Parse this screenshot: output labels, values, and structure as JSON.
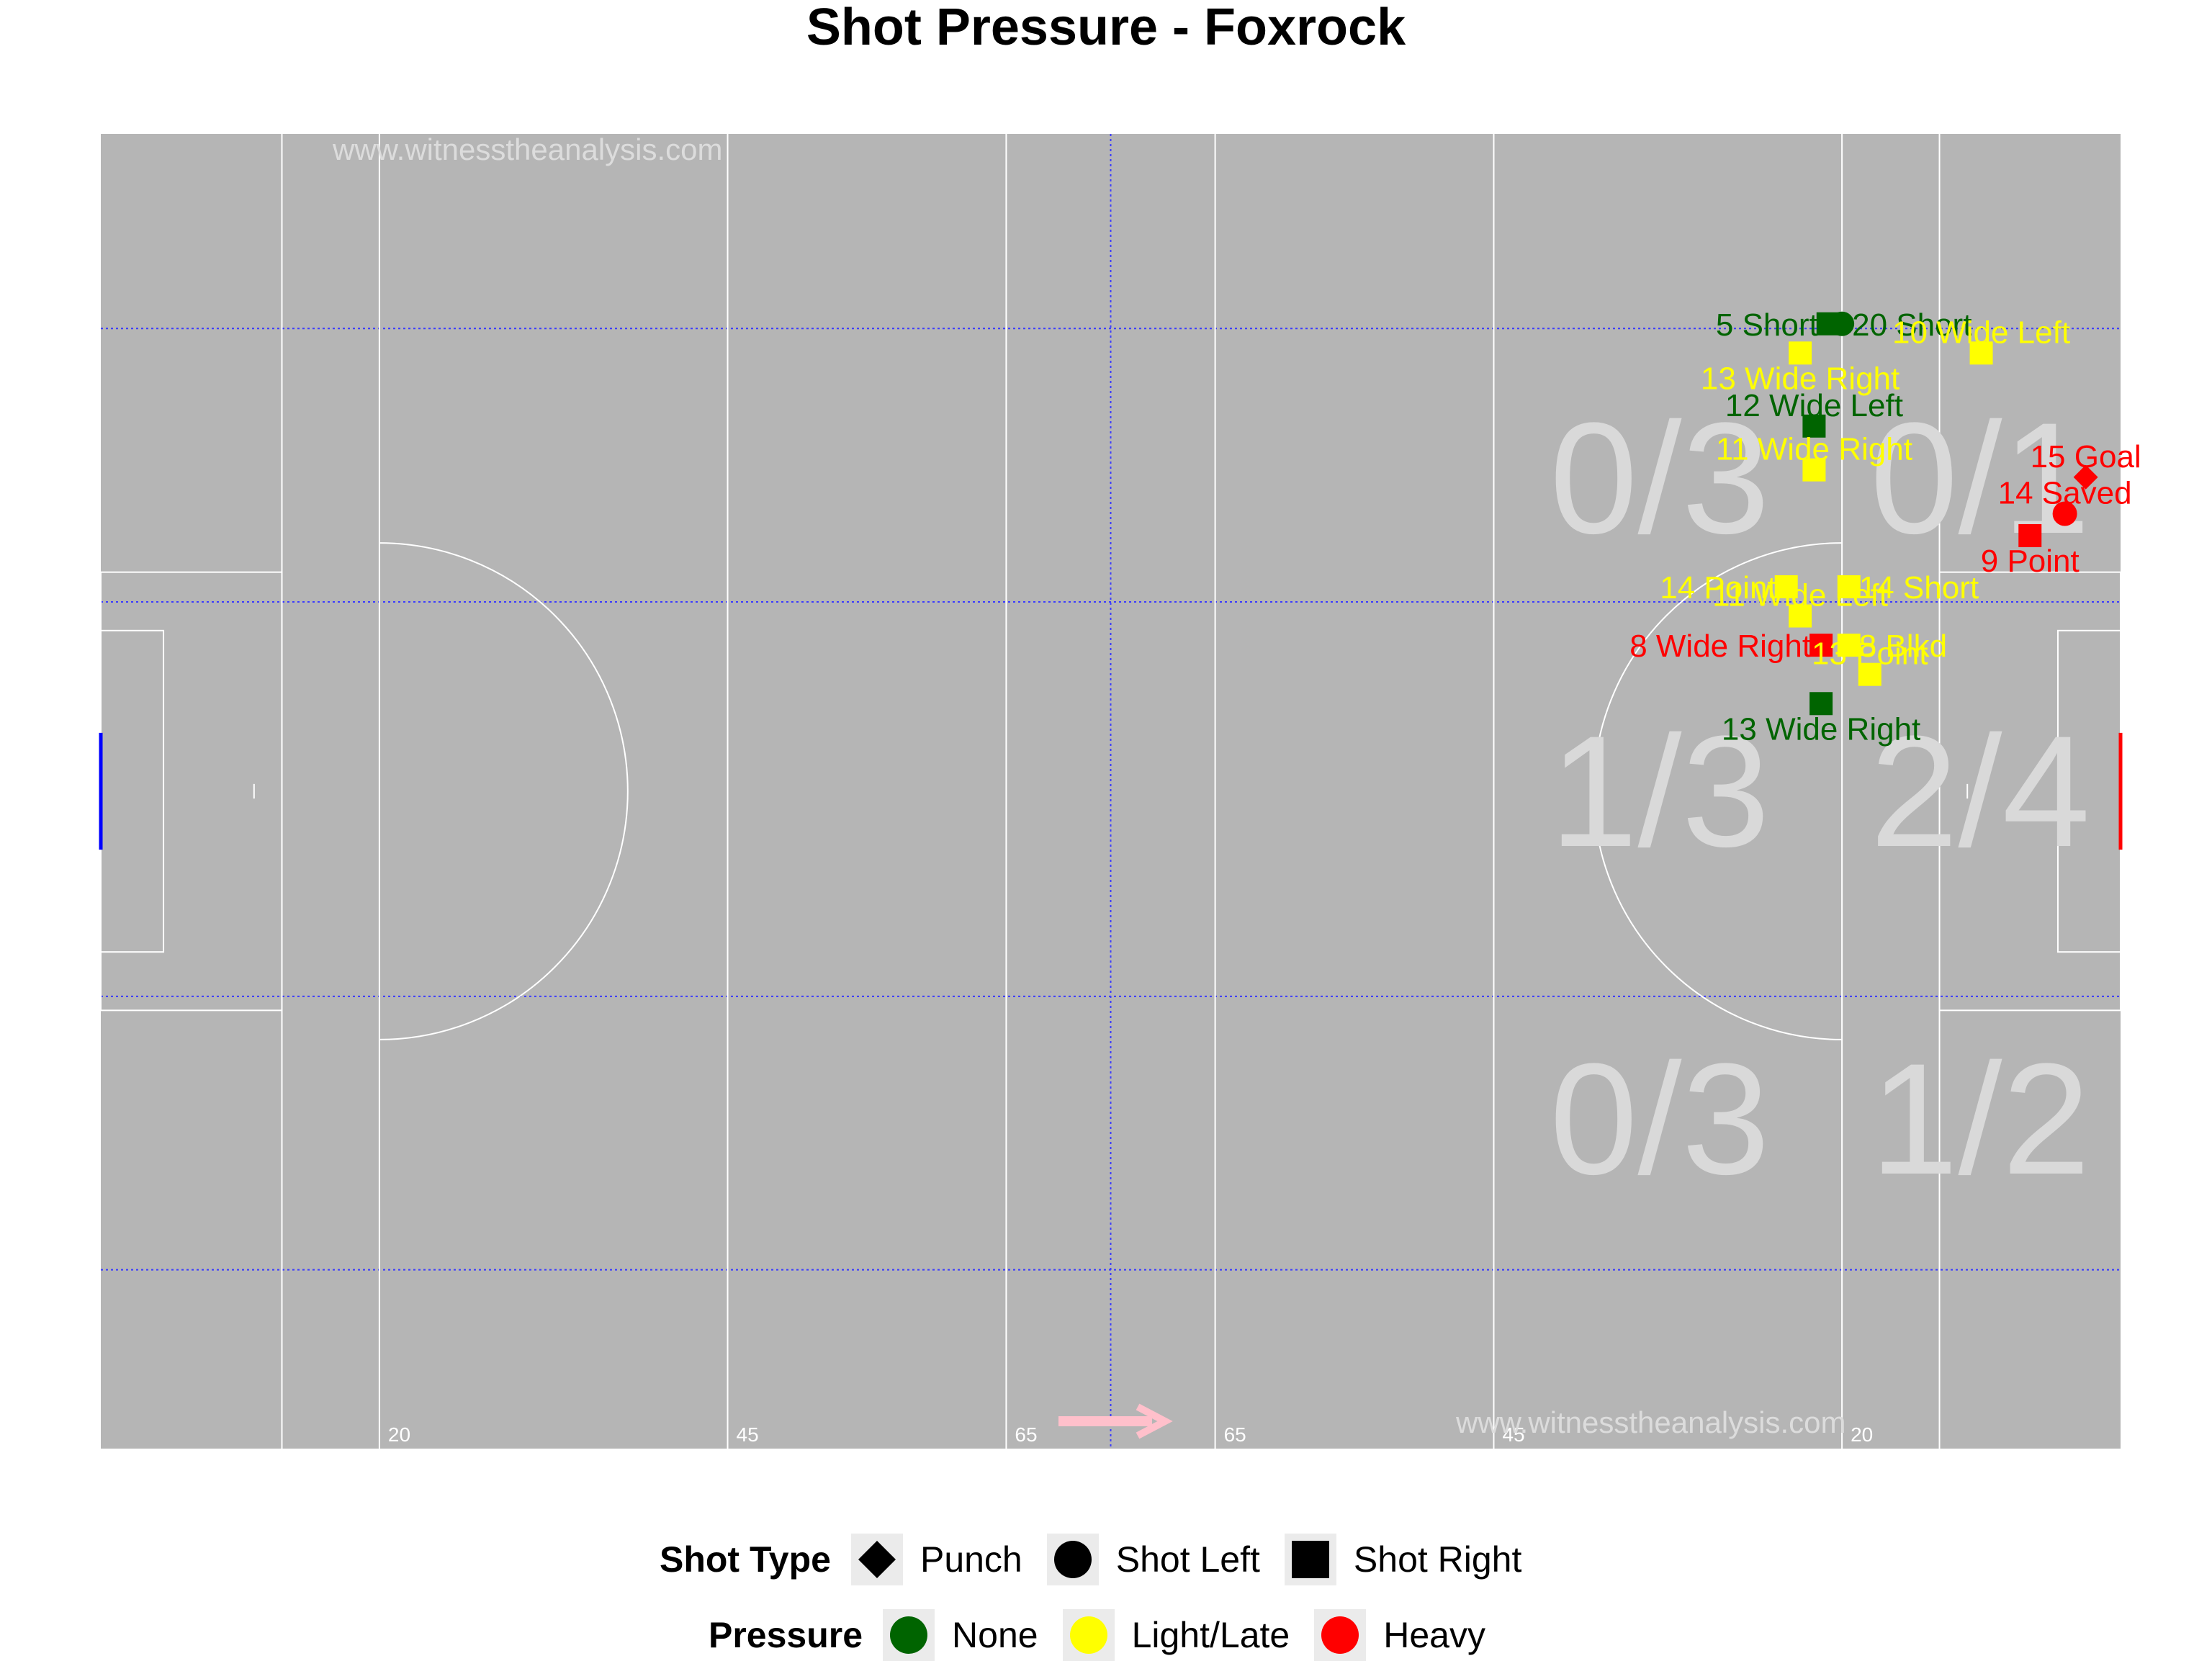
{
  "title": "Shot Pressure - Foxrock",
  "watermark": "www.witnesstheanalysis.com",
  "pitch": {
    "background": "#b5b5b5",
    "line_color": "#ffffff",
    "grid_color": "#3a3aff",
    "distance_labels": [
      "20",
      "45",
      "65",
      "65",
      "45",
      "20"
    ]
  },
  "zone_ratios": [
    {
      "zone": "top-left",
      "text": "0/3"
    },
    {
      "zone": "top-right",
      "text": "0/1"
    },
    {
      "zone": "middle-left",
      "text": "1/3"
    },
    {
      "zone": "middle-right",
      "text": "2/4"
    },
    {
      "zone": "bottom-left",
      "text": "0/3"
    },
    {
      "zone": "bottom-right",
      "text": "1/2"
    }
  ],
  "legend": {
    "shot_type_title": "Shot Type",
    "shot_types": [
      {
        "label": "Punch",
        "shape": "diamond"
      },
      {
        "label": "Shot Left",
        "shape": "circle"
      },
      {
        "label": "Shot Right",
        "shape": "square"
      }
    ],
    "pressure_title": "Pressure",
    "pressures": [
      {
        "label": "None",
        "color": "#006400"
      },
      {
        "label": "Light/Late",
        "color": "#ffff00"
      },
      {
        "label": "Heavy",
        "color": "#ff0000"
      }
    ]
  },
  "chart_data": {
    "type": "scatter",
    "title": "Shot Pressure - Foxrock",
    "x_unit": "metres from attacking goal line",
    "y_unit": "metres across pitch (0 = top touchline)",
    "points": [
      {
        "label": "5 Short",
        "x": 21,
        "y": 13,
        "shape": "square",
        "pressure": "None",
        "label_side": "left"
      },
      {
        "label": "20 Short",
        "x": 20,
        "y": 13,
        "shape": "circle",
        "pressure": "None",
        "label_side": "right"
      },
      {
        "label": "13 Wide Right",
        "x": 23,
        "y": 15,
        "shape": "square",
        "pressure": "Light/Late",
        "label_side": "below"
      },
      {
        "label": "10 Wide Left",
        "x": 10,
        "y": 15,
        "shape": "square",
        "pressure": "Light/Late",
        "label_side": "above"
      },
      {
        "label": "12 Wide Left",
        "x": 22,
        "y": 20,
        "shape": "square",
        "pressure": "None",
        "label_side": "above"
      },
      {
        "label": "11 Wide Right",
        "x": 22,
        "y": 23,
        "shape": "square",
        "pressure": "Light/Late",
        "label_side": "above"
      },
      {
        "label": "15 Goal",
        "x": 2.5,
        "y": 23.5,
        "shape": "diamond",
        "pressure": "Heavy",
        "label_side": "above"
      },
      {
        "label": "14 Saved",
        "x": 4,
        "y": 26,
        "shape": "circle",
        "pressure": "Heavy",
        "label_side": "above"
      },
      {
        "label": "9 Point",
        "x": 6.5,
        "y": 27.5,
        "shape": "square",
        "pressure": "Heavy",
        "label_side": "below"
      },
      {
        "label": "14 Point",
        "x": 24,
        "y": 31,
        "shape": "square",
        "pressure": "Light/Late",
        "label_side": "left"
      },
      {
        "label": "14 Short",
        "x": 19.5,
        "y": 31,
        "shape": "square",
        "pressure": "Light/Late",
        "label_side": "right"
      },
      {
        "label": "11 Wide Left",
        "x": 23,
        "y": 33,
        "shape": "square",
        "pressure": "Light/Late",
        "label_side": "above"
      },
      {
        "label": "8 Wide Right",
        "x": 21.5,
        "y": 35,
        "shape": "square",
        "pressure": "Heavy",
        "label_side": "left"
      },
      {
        "label": "8 Blkd",
        "x": 19.5,
        "y": 35,
        "shape": "square",
        "pressure": "Light/Late",
        "label_side": "right"
      },
      {
        "label": "13 Point",
        "x": 18,
        "y": 37,
        "shape": "square",
        "pressure": "Light/Late",
        "label_side": "above"
      },
      {
        "label": "13 Wide Right",
        "x": 21.5,
        "y": 39,
        "shape": "square",
        "pressure": "None",
        "label_side": "below"
      }
    ]
  }
}
